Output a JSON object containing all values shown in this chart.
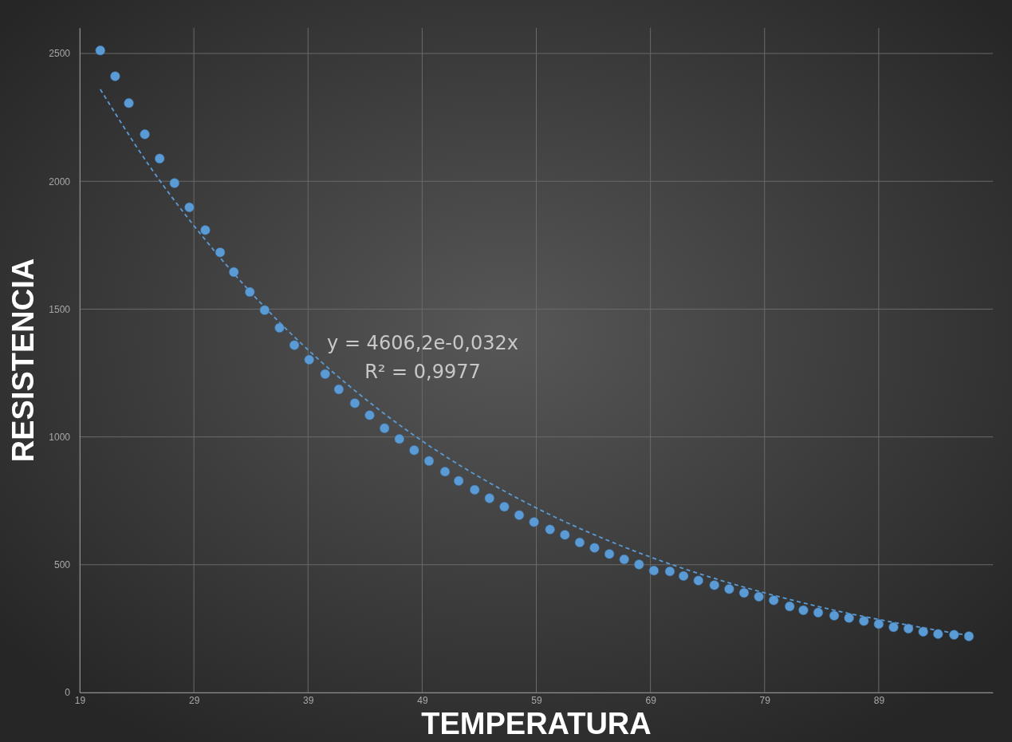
{
  "chart_data": {
    "type": "scatter",
    "xlabel": "TEMPERATURA",
    "ylabel": "RESISTENCIA",
    "xlim": [
      19,
      99
    ],
    "xticks": [
      19,
      29,
      39,
      49,
      59,
      69,
      79,
      89
    ],
    "ylim": [
      0,
      2600
    ],
    "yticks": [
      0,
      500,
      1000,
      1500,
      2000,
      2500
    ],
    "grid": true,
    "marker": "circle",
    "annotations": [
      "y = 4606,2e-0,032x",
      "R² = 0,9977"
    ],
    "series": [
      {
        "color": "#5b9bd5",
        "x": [
          20.8,
          22.1,
          23.3,
          24.7,
          26.0,
          27.3,
          28.6,
          30.0,
          31.3,
          32.5,
          33.9,
          35.2,
          36.5,
          37.8,
          39.1,
          40.5,
          41.7,
          43.1,
          44.4,
          45.7,
          47.0,
          48.3,
          49.6,
          51.0,
          52.2,
          53.6,
          54.9,
          56.2,
          57.5,
          58.8,
          60.2,
          61.5,
          62.8,
          64.1,
          65.4,
          66.7,
          68.0,
          69.3,
          70.7,
          71.9,
          73.2,
          74.6,
          75.9,
          77.2,
          78.5,
          79.8,
          81.2,
          82.4,
          83.7,
          85.1,
          86.4,
          87.7,
          89.0,
          90.3,
          91.6,
          92.9,
          94.2,
          95.6,
          96.9
        ],
        "values": [
          2512,
          2411,
          2306,
          2184,
          2089,
          1993,
          1898,
          1809,
          1722,
          1645,
          1567,
          1496,
          1427,
          1359,
          1302,
          1246,
          1186,
          1132,
          1085,
          1034,
          992,
          948,
          906,
          864,
          828,
          793,
          760,
          727,
          694,
          667,
          638,
          617,
          587,
          566,
          542,
          521,
          501,
          477,
          474,
          456,
          438,
          420,
          405,
          390,
          375,
          361,
          337,
          322,
          313,
          301,
          292,
          280,
          268,
          256,
          250,
          238,
          229,
          226,
          220
        ]
      },
      {
        "type": "line",
        "color": "#5b9bd5",
        "marker": "none",
        "line_style": "dashed",
        "x": [
          20.8,
          25,
          30,
          35,
          40,
          45,
          50,
          55,
          60,
          65,
          70,
          75,
          80,
          85,
          90,
          95,
          97.2
        ],
        "values": [
          2360,
          2067,
          1771,
          1517,
          1300,
          1114,
          954,
          818,
          700,
          600,
          514,
          441,
          378,
          323,
          277,
          237,
          221
        ]
      }
    ]
  }
}
